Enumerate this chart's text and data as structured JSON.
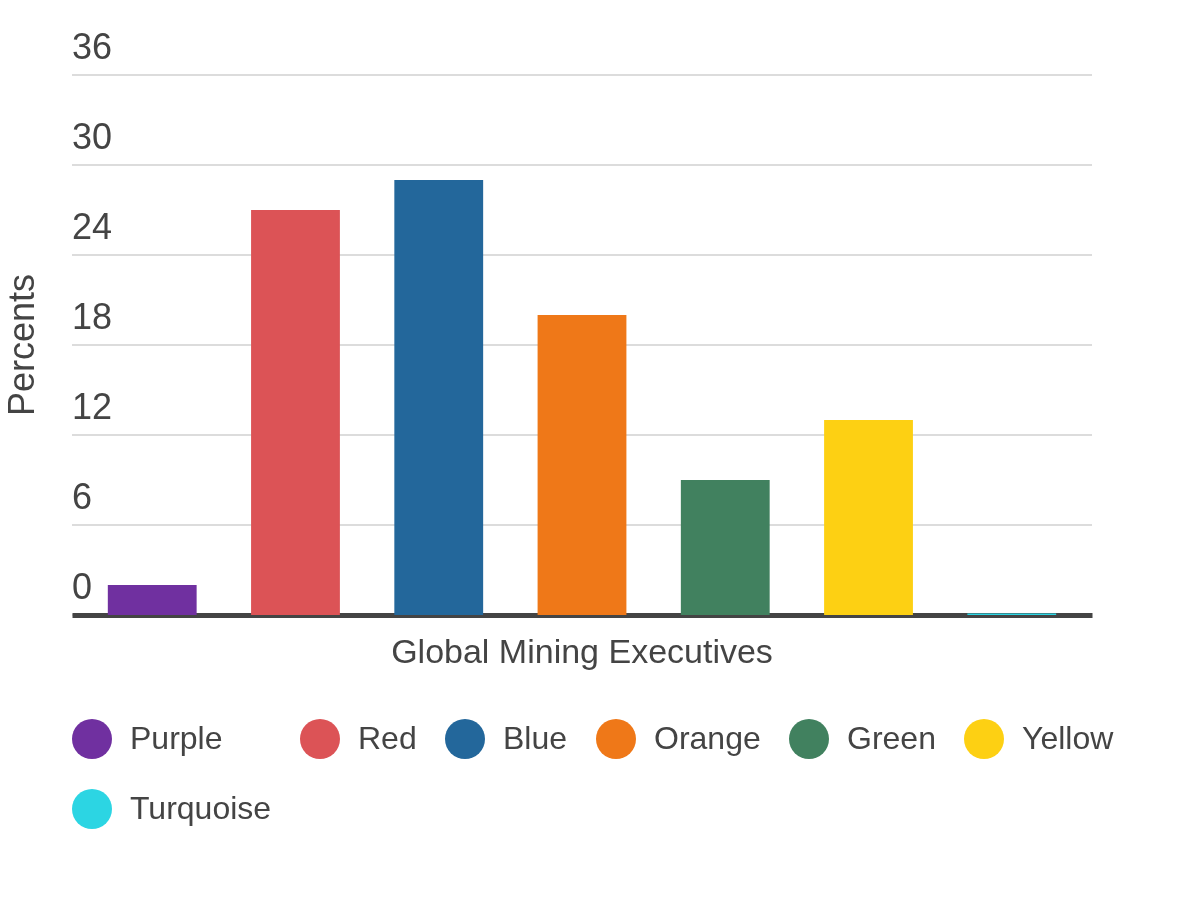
{
  "chart_data": {
    "type": "bar",
    "ylabel": "Percents",
    "categories": [
      "Global Mining Executives"
    ],
    "series": [
      {
        "name": "Purple",
        "color": "#7030a0",
        "values": [
          2
        ]
      },
      {
        "name": "Red",
        "color": "#dc5356",
        "values": [
          27
        ]
      },
      {
        "name": "Blue",
        "color": "#23679b",
        "values": [
          29
        ]
      },
      {
        "name": "Orange",
        "color": "#ef7818",
        "values": [
          20
        ]
      },
      {
        "name": "Green",
        "color": "#41815f",
        "values": [
          9
        ]
      },
      {
        "name": "Yellow",
        "color": "#fdd013",
        "values": [
          13
        ]
      },
      {
        "name": "Turquoise",
        "color": "#2cd5e3",
        "values": [
          0.1
        ]
      }
    ],
    "ylim": [
      0,
      36
    ],
    "yticks": [
      0,
      6,
      12,
      18,
      24,
      30,
      36
    ],
    "grid": "y",
    "legend": "bottom"
  }
}
